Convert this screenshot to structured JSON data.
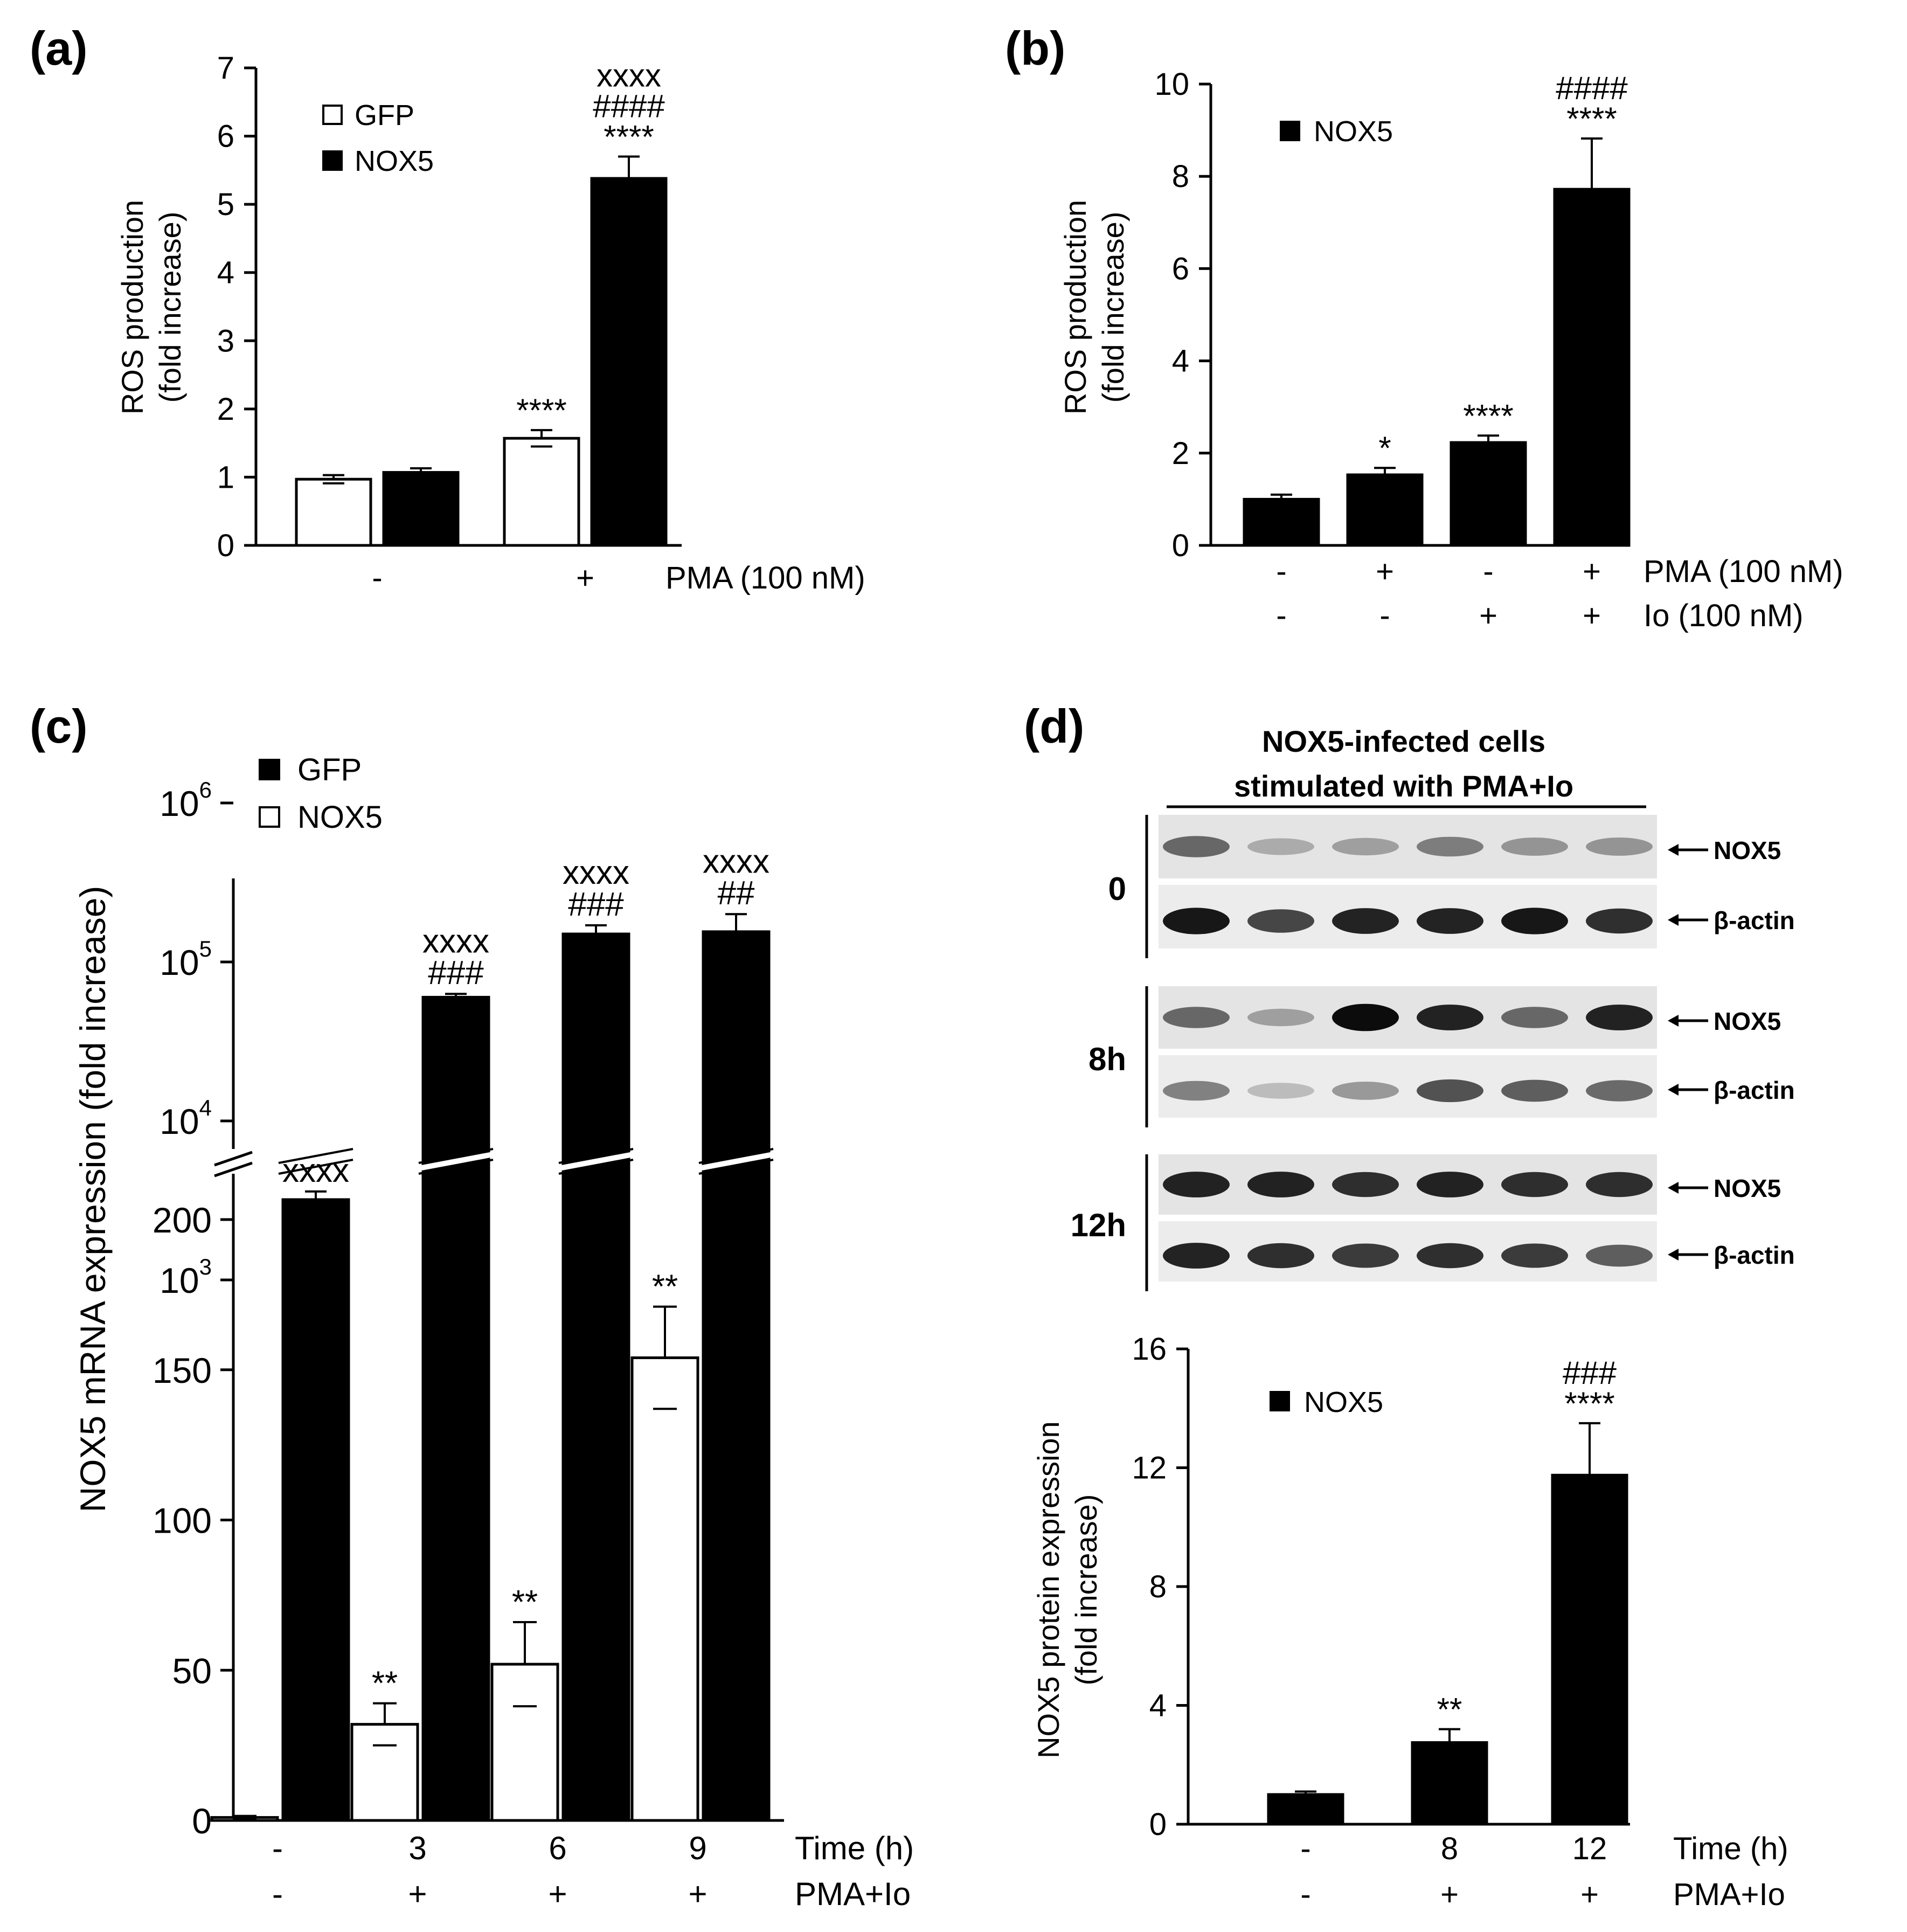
{
  "panels": {
    "a": {
      "label": "(a)",
      "chart_data": {
        "type": "bar",
        "title": "",
        "ylabel_lines": [
          "ROS production",
          "(fold increase)"
        ],
        "ylim": [
          0,
          7
        ],
        "yticks": [
          0,
          1,
          2,
          3,
          4,
          5,
          6,
          7
        ],
        "categories": [
          "-",
          "+"
        ],
        "condition_labels": [
          "PMA (100 nM)"
        ],
        "series": [
          {
            "name": "GFP",
            "fill": "white",
            "values": [
              0.97,
              1.57
            ],
            "errors": [
              0.06,
              0.12
            ],
            "annotations": [
              "",
              "****"
            ]
          },
          {
            "name": "NOX5",
            "fill": "black",
            "values": [
              1.07,
              5.38
            ],
            "errors": [
              0.06,
              0.32
            ],
            "annotations": [
              "",
              "xxxx|####|****"
            ]
          }
        ],
        "legend": [
          "GFP",
          "NOX5"
        ],
        "legend_position": "top-left"
      }
    },
    "b": {
      "label": "(b)",
      "chart_data": {
        "type": "bar",
        "title": "",
        "ylabel_lines": [
          "ROS production",
          "(fold increase)"
        ],
        "ylim": [
          0,
          10
        ],
        "yticks": [
          0,
          2,
          4,
          6,
          8,
          10
        ],
        "categories": [
          "1",
          "2",
          "3",
          "4"
        ],
        "condition_rows": [
          {
            "label": "PMA (100 nM)",
            "values": [
              "-",
              "+",
              "-",
              "+"
            ]
          },
          {
            "label": "Io (100 nM)",
            "values": [
              "-",
              "-",
              "+",
              "+"
            ]
          }
        ],
        "series": [
          {
            "name": "NOX5",
            "fill": "black",
            "values": [
              1.0,
              1.53,
              2.23,
              7.72
            ],
            "errors": [
              0.1,
              0.15,
              0.15,
              1.1
            ],
            "annotations": [
              "",
              "*",
              "****",
              "####|****"
            ]
          }
        ],
        "legend": [
          "NOX5"
        ],
        "legend_position": "top-left"
      }
    },
    "c": {
      "label": "(c)",
      "chart_data": {
        "type": "bar",
        "title": "",
        "ylabel": "NOX5 mRNA expression (fold increase)",
        "axis_break": true,
        "ylim_lower": [
          0,
          220
        ],
        "yticks_lower": [
          0,
          50,
          100,
          150,
          200
        ],
        "ylim_upper_log": [
          1000,
          1000000
        ],
        "yticks_upper": [
          {
            "base": "10",
            "exp": "3"
          },
          {
            "base": "10",
            "exp": "4"
          },
          {
            "base": "10",
            "exp": "5"
          },
          {
            "base": "10",
            "exp": "6"
          }
        ],
        "categories": [
          "1",
          "2",
          "3",
          "4"
        ],
        "condition_rows": [
          {
            "label": "Time (h)",
            "values": [
              "-",
              "3",
              "6",
              "9"
            ]
          },
          {
            "label": "PMA+Io",
            "values": [
              "-",
              "+",
              "+",
              "+"
            ]
          }
        ],
        "series": [
          {
            "name": "NOX5",
            "fill": "white",
            "values": [
              1,
              32,
              52,
              154
            ],
            "errors": [
              0.5,
              7,
              14,
              17
            ],
            "annotations": [
              "",
              "**",
              "**",
              "**"
            ]
          },
          {
            "name": "GFP",
            "fill": "black",
            "values": [
              3200,
              60000,
              150000,
              155000
            ],
            "errors": [
              400,
              3000,
              20000,
              45000
            ],
            "annotations": [
              "xxxx",
              "xxxx|###",
              "xxxx|###",
              "xxxx|##"
            ]
          }
        ],
        "legend": [
          "GFP",
          "NOX5"
        ],
        "legend_position": "top-left"
      }
    },
    "d": {
      "label": "(d)",
      "blot": {
        "header_lines": [
          "NOX5-infected cells",
          "stimulated  with  PMA+Io"
        ],
        "rows": [
          {
            "time": "0",
            "bands": [
              "NOX5",
              "β-actin"
            ]
          },
          {
            "time": "8h",
            "bands": [
              "NOX5",
              "β-actin"
            ]
          },
          {
            "time": "12h",
            "bands": [
              "NOX5",
              "β-actin"
            ]
          }
        ]
      },
      "chart_data": {
        "type": "bar",
        "title": "",
        "ylabel_lines": [
          "NOX5 protein expression",
          "(fold increase)"
        ],
        "ylim": [
          0,
          16
        ],
        "yticks": [
          0,
          4,
          8,
          12,
          16
        ],
        "categories": [
          "1",
          "2",
          "3"
        ],
        "condition_rows": [
          {
            "label": "Time (h)",
            "values": [
              "-",
              "8",
              "12"
            ]
          },
          {
            "label": "PMA+Io",
            "values": [
              "-",
              "+",
              "+"
            ]
          }
        ],
        "series": [
          {
            "name": "NOX5",
            "fill": "black",
            "values": [
              1.0,
              2.75,
              11.75
            ],
            "errors": [
              0.1,
              0.45,
              1.75
            ],
            "annotations": [
              "",
              "**",
              "###|****"
            ]
          }
        ],
        "legend": [
          "NOX5"
        ],
        "legend_position": "top-left"
      }
    }
  }
}
